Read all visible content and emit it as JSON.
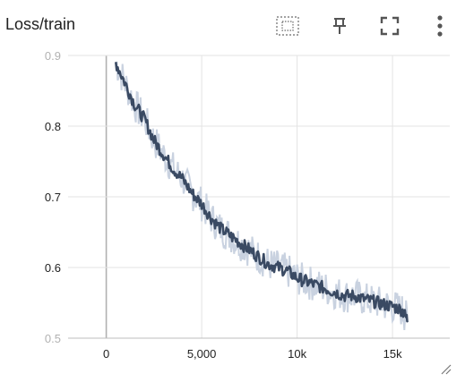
{
  "panel": {
    "title": "Loss/train"
  },
  "toolbar": {
    "fit_icon": "fit-domain-icon",
    "pin_icon": "pin-icon",
    "expand_icon": "fullscreen-icon",
    "more_icon": "more-vert-icon"
  },
  "colors": {
    "smoothed_line": "#3a4a63",
    "raw_line": "#c9d2e0",
    "grid": "#e3e3e3",
    "zero_axis": "#b0b0b0",
    "text": "#212121"
  },
  "chart_data": {
    "type": "line",
    "title": "",
    "xlabel": "",
    "ylabel": "",
    "xlim": [
      -2000,
      18000
    ],
    "ylim": [
      0.5,
      0.9
    ],
    "x_ticks": [
      0,
      5000,
      10000,
      15000
    ],
    "x_tick_labels": [
      "0",
      "5,000",
      "10k",
      "15k"
    ],
    "y_ticks": [
      0.5,
      0.6,
      0.7,
      0.8,
      0.9
    ],
    "y_tick_labels": [
      "0.5",
      "0.6",
      "0.7",
      "0.8",
      "0.9"
    ],
    "grid": true,
    "legend": "none",
    "series": [
      {
        "kind": "smoothed",
        "x": [
          500,
          1000,
          1500,
          2000,
          2500,
          3000,
          3500,
          4000,
          4500,
          5000,
          5500,
          6000,
          6500,
          7000,
          7500,
          8000,
          8500,
          9000,
          9500,
          10000,
          10500,
          11000,
          11500,
          12000,
          12500,
          13000,
          13500,
          14000,
          14500,
          15000,
          15500,
          15800
        ],
        "y": [
          0.89,
          0.86,
          0.83,
          0.81,
          0.78,
          0.76,
          0.74,
          0.725,
          0.705,
          0.69,
          0.67,
          0.655,
          0.645,
          0.635,
          0.625,
          0.615,
          0.605,
          0.6,
          0.595,
          0.585,
          0.58,
          0.575,
          0.57,
          0.565,
          0.56,
          0.56,
          0.555,
          0.552,
          0.548,
          0.545,
          0.54,
          0.525
        ]
      }
    ]
  }
}
